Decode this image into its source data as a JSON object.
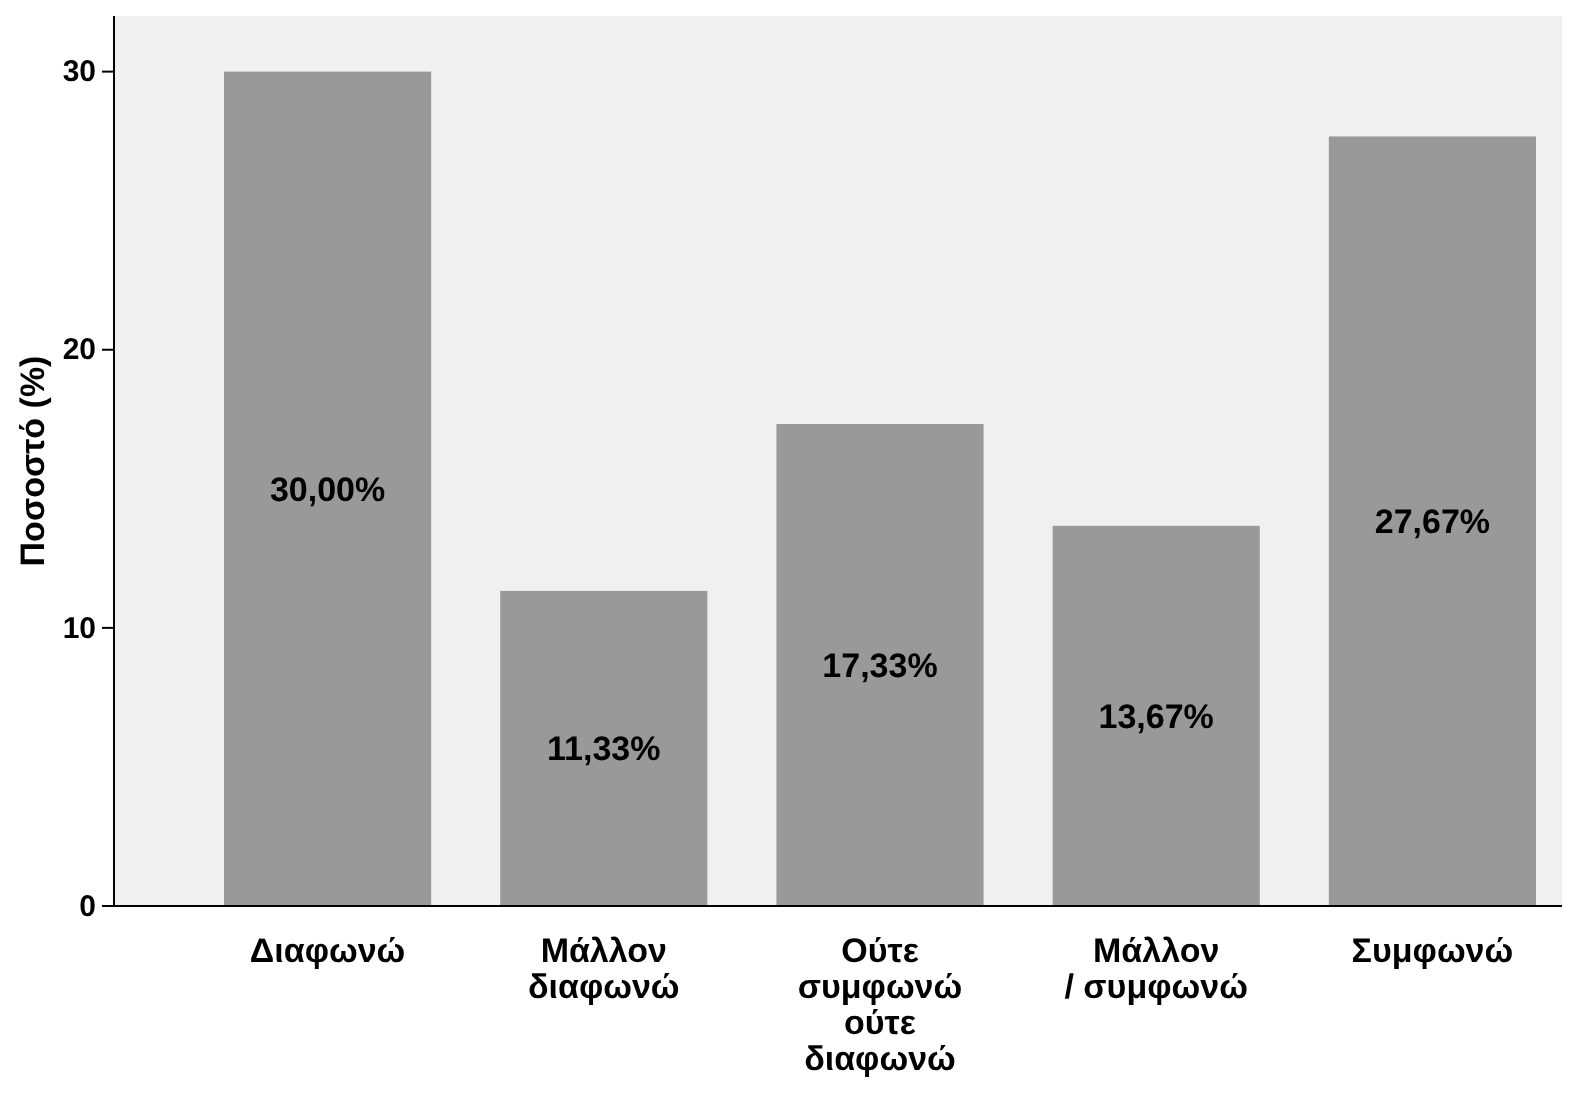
{
  "chart_data": {
    "type": "bar",
    "ylabel": "Ποσοστό (%)",
    "categories": [
      "Διαφωνώ",
      "Μάλλον διαφωνώ",
      "Ούτε συμφωνώ ούτε διαφωνώ",
      "Μάλλον / συμφωνώ",
      "Συμφωνώ"
    ],
    "values": [
      30.0,
      11.33,
      17.33,
      13.67,
      27.67
    ],
    "value_labels": [
      "30,00%",
      "11,33%",
      "17,33%",
      "13,67%",
      "27,67%"
    ],
    "color": "#999999",
    "ylim": [
      0,
      32
    ],
    "yticks": [
      0,
      10,
      20,
      30
    ],
    "grid": false
  }
}
